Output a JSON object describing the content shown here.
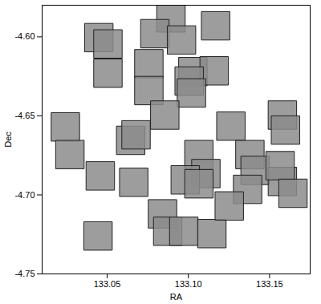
{
  "chart_data": {
    "type": "scatter",
    "x_label": "RA",
    "y_label": "Dec",
    "x": [
      133.0449,
      133.0505,
      133.0505,
      133.0893,
      133.0794,
      133.0958,
      133.1168,
      133.0757,
      133.1028,
      133.1159,
      133.1005,
      133.0757,
      133.1019,
      133.0243,
      133.0855,
      133.1262,
      133.0645,
      133.0678,
      133.1579,
      133.1598,
      133.0271,
      133.0458,
      133.0664,
      133.1065,
      133.1108,
      133.0981,
      133.1065,
      133.1379,
      133.1411,
      133.1365,
      133.1579,
      133.1565,
      133.1644,
      133.0841,
      133.0873,
      133.0972,
      133.1145,
      133.1252,
      133.0444
    ],
    "y": [
      -4.6005,
      -4.6045,
      -4.623,
      -4.588,
      -4.598,
      -4.602,
      -4.593,
      -4.617,
      -4.622,
      -4.6215,
      -4.628,
      -4.634,
      -4.6355,
      -4.657,
      -4.6495,
      -4.6565,
      -4.6655,
      -4.662,
      -4.6495,
      -4.659,
      -4.6745,
      -4.688,
      -4.692,
      -4.6745,
      -4.6865,
      -4.6905,
      -4.693,
      -4.6745,
      -4.6845,
      -4.6965,
      -4.6915,
      -4.6815,
      -4.699,
      -4.712,
      -4.723,
      -4.723,
      -4.7245,
      -4.707,
      -4.726
    ],
    "xlim": [
      133.01,
      133.175
    ],
    "ylim": [
      -4.75,
      -4.58
    ],
    "xticks": [
      133.05,
      {
        "value": 133.1,
        "label": "133.10"
      },
      133.15
    ],
    "yticks": [
      {
        "value": -4.6,
        "label": "-4.60"
      },
      {
        "value": -4.65,
        "label": "-4.65"
      },
      {
        "value": -4.7,
        "label": "-4.70"
      },
      {
        "value": -4.75,
        "label": "-4.75"
      }
    ],
    "marker": "square",
    "color": "#8c8c8c"
  }
}
